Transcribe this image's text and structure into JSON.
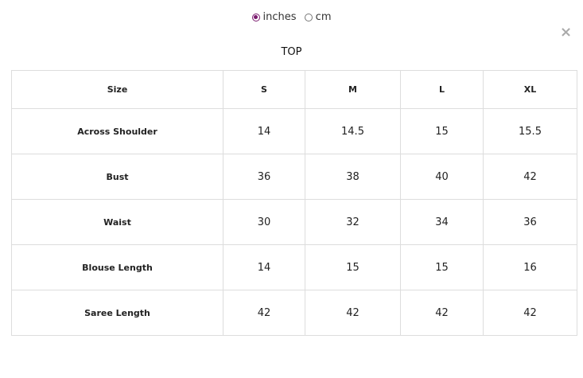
{
  "units": {
    "options": [
      {
        "label": "inches",
        "selected": true
      },
      {
        "label": "cm",
        "selected": false
      }
    ],
    "accent": "#7a1a6e"
  },
  "close_icon": "×",
  "title": "TOP",
  "table": {
    "headers": [
      "Size",
      "S",
      "M",
      "L",
      "XL"
    ],
    "rows": [
      {
        "label": "Across Shoulder",
        "values": [
          "14",
          "14.5",
          "15",
          "15.5"
        ]
      },
      {
        "label": "Bust",
        "values": [
          "36",
          "38",
          "40",
          "42"
        ]
      },
      {
        "label": "Waist",
        "values": [
          "30",
          "32",
          "34",
          "36"
        ]
      },
      {
        "label": "Blouse Length",
        "values": [
          "14",
          "15",
          "15",
          "16"
        ]
      },
      {
        "label": "Saree Length",
        "values": [
          "42",
          "42",
          "42",
          "42"
        ]
      }
    ]
  }
}
